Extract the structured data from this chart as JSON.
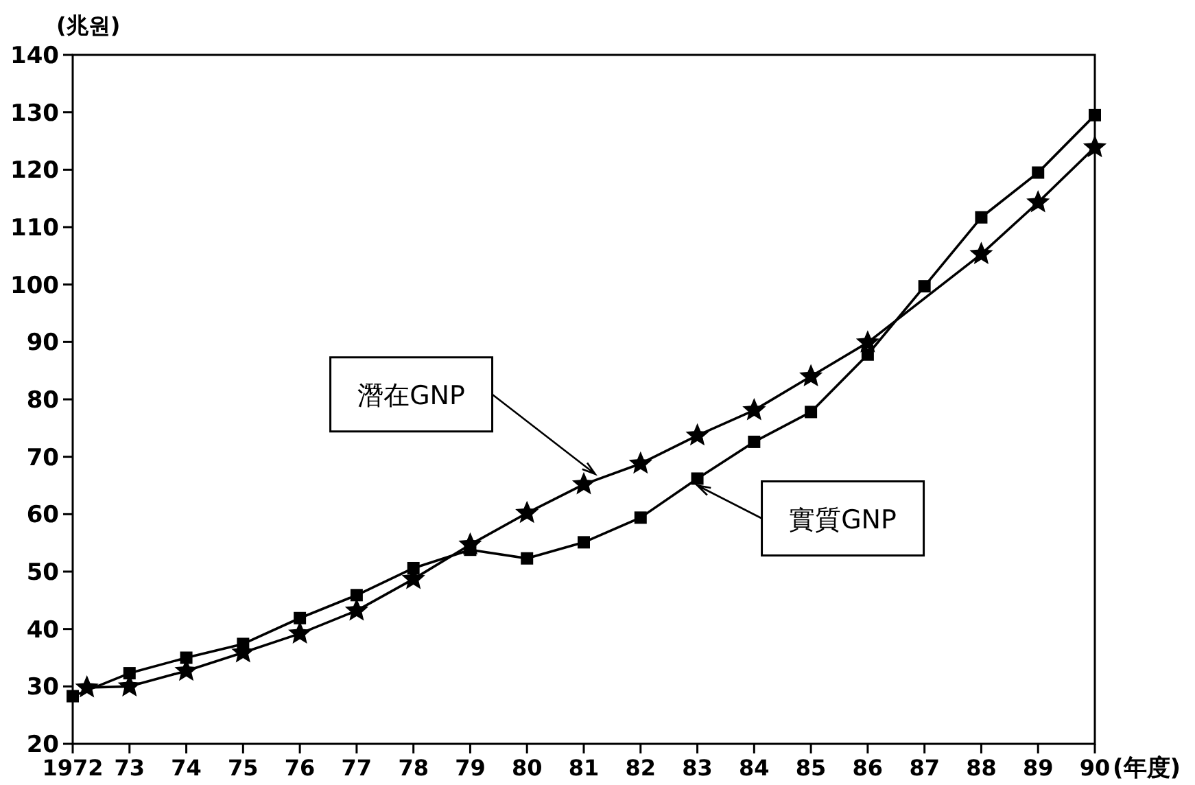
{
  "chart_data": {
    "type": "line",
    "xlabel": "(年度)",
    "ylabel": "(兆원)",
    "xlim": [
      1972,
      1990
    ],
    "ylim": [
      20,
      140
    ],
    "xticks": [
      {
        "value": 1972,
        "label": "1972"
      },
      {
        "value": 1973,
        "label": "73"
      },
      {
        "value": 1974,
        "label": "74"
      },
      {
        "value": 1975,
        "label": "75"
      },
      {
        "value": 1976,
        "label": "76"
      },
      {
        "value": 1977,
        "label": "77"
      },
      {
        "value": 1978,
        "label": "78"
      },
      {
        "value": 1979,
        "label": "79"
      },
      {
        "value": 1980,
        "label": "80"
      },
      {
        "value": 1981,
        "label": "81"
      },
      {
        "value": 1982,
        "label": "82"
      },
      {
        "value": 1983,
        "label": "83"
      },
      {
        "value": 1984,
        "label": "84"
      },
      {
        "value": 1985,
        "label": "85"
      },
      {
        "value": 1986,
        "label": "86"
      },
      {
        "value": 1987,
        "label": "87"
      },
      {
        "value": 1988,
        "label": "88"
      },
      {
        "value": 1989,
        "label": "89"
      },
      {
        "value": 1990,
        "label": "90"
      }
    ],
    "yticks": [
      20,
      30,
      40,
      50,
      60,
      70,
      80,
      90,
      100,
      110,
      120,
      130,
      140
    ],
    "grid": false,
    "line_style": "solid",
    "series": [
      {
        "color": "#000000",
        "marker": "star",
        "x": [
          1972.25,
          1973,
          1974,
          1975,
          1976,
          1977,
          1978,
          1979,
          1980,
          1981,
          1982,
          1983,
          1984,
          1985,
          1986,
          1988,
          1989,
          1990
        ],
        "values": [
          29.8,
          30,
          32.7,
          35.9,
          39.2,
          43.2,
          48.7,
          54.7,
          60.2,
          65.2,
          68.8,
          73.7,
          78.1,
          84,
          89.9,
          105.3,
          114.3,
          123.9
        ]
      },
      {
        "color": "#000000",
        "marker": "square",
        "x": [
          1972,
          1973,
          1974,
          1975,
          1976,
          1977,
          1978,
          1979,
          1980,
          1981,
          1982,
          1983,
          1984,
          1985,
          1986,
          1987,
          1988,
          1989,
          1990
        ],
        "values": [
          28.3,
          32.3,
          35,
          37.4,
          41.9,
          45.9,
          50.6,
          53.8,
          52.3,
          55.1,
          59.4,
          66.2,
          72.6,
          77.8,
          87.8,
          99.7,
          111.7,
          119.5,
          129.5
        ]
      }
    ],
    "annotations": [
      {
        "text": "潛在GNP",
        "x": 1981.2,
        "y": 67
      },
      {
        "text": "實質GNP",
        "x": 1983,
        "y": 65
      }
    ]
  }
}
